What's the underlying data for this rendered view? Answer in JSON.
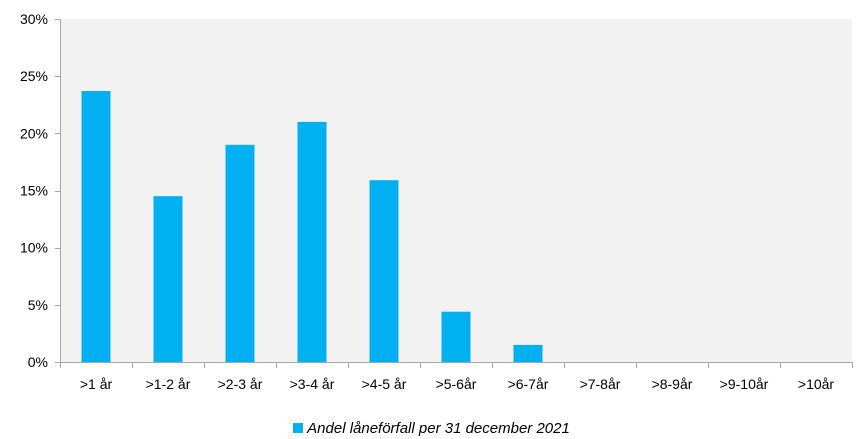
{
  "chart_data": {
    "type": "bar",
    "categories": [
      ">1 år",
      ">1-2 år",
      ">2-3 år",
      ">3-4 år",
      ">4-5 år",
      ">5-6år",
      ">6-7år",
      ">7-8år",
      ">8-9år",
      ">9-10år",
      ">10år"
    ],
    "series": [
      {
        "name": "Andel låneförfall per 31 december 2021",
        "values": [
          23.7,
          14.5,
          19.0,
          21.0,
          15.9,
          4.4,
          1.5,
          0,
          0,
          0,
          0
        ],
        "color": "#00b0f0"
      }
    ],
    "y_ticks": [
      "0%",
      "5%",
      "10%",
      "15%",
      "20%",
      "25%",
      "30%"
    ],
    "ylim": [
      0,
      30
    ],
    "unit": "%",
    "grid": false,
    "legend_position": "bottom",
    "plot_background": "#f2f2f2",
    "axis_color": "#a6a6a6"
  }
}
